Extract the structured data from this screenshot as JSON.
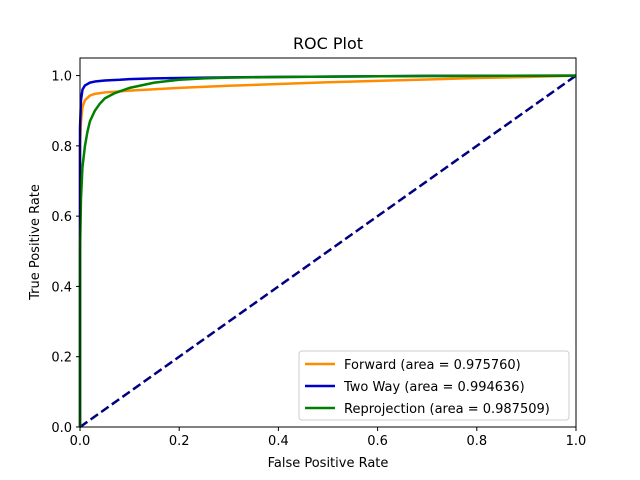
{
  "chart_data": {
    "type": "line",
    "title": "ROC Plot",
    "xlabel": "False Positive Rate",
    "ylabel": "True Positive Rate",
    "xlim": [
      0,
      1
    ],
    "ylim": [
      0,
      1.05
    ],
    "xticks": [
      0,
      0.2,
      0.4,
      0.6,
      0.8,
      1
    ],
    "yticks": [
      0,
      0.2,
      0.4,
      0.6,
      0.8,
      1
    ],
    "xtick_labels": [
      "0.0",
      "0.2",
      "0.4",
      "0.6",
      "0.8",
      "1.0"
    ],
    "ytick_labels": [
      "0.0",
      "0.2",
      "0.4",
      "0.6",
      "0.8",
      "1.0"
    ],
    "grid": false,
    "legend_position": "lower-right",
    "series": [
      {
        "name": "Forward (area = 0.975760)",
        "color": "#ff8c00",
        "style": "solid",
        "x": [
          0,
          0,
          0.002,
          0.005,
          0.01,
          0.02,
          0.03,
          0.05,
          0.08,
          0.1,
          0.2,
          0.3,
          0.4,
          0.5,
          0.6,
          0.7,
          0.8,
          0.9,
          1.0
        ],
        "y": [
          0,
          0.8,
          0.87,
          0.91,
          0.93,
          0.943,
          0.948,
          0.952,
          0.955,
          0.957,
          0.965,
          0.971,
          0.976,
          0.981,
          0.985,
          0.989,
          0.993,
          0.996,
          1.0
        ]
      },
      {
        "name": "Two Way (area = 0.994636)",
        "color": "#0000cc",
        "style": "solid",
        "x": [
          0,
          0,
          0.002,
          0.005,
          0.01,
          0.02,
          0.03,
          0.05,
          0.08,
          0.1,
          0.15,
          0.2,
          0.3,
          0.5,
          0.7,
          1.0
        ],
        "y": [
          0,
          0.85,
          0.93,
          0.96,
          0.972,
          0.98,
          0.983,
          0.986,
          0.988,
          0.99,
          0.992,
          0.993,
          0.995,
          0.997,
          0.999,
          1.0
        ]
      },
      {
        "name": "Reprojection (area = 0.987509)",
        "color": "#008000",
        "style": "solid",
        "x": [
          0,
          0,
          0.002,
          0.005,
          0.01,
          0.015,
          0.02,
          0.03,
          0.04,
          0.05,
          0.07,
          0.1,
          0.15,
          0.2,
          0.25,
          0.3,
          0.4,
          0.5,
          0.6,
          0.8,
          1.0
        ],
        "y": [
          0,
          0.5,
          0.65,
          0.74,
          0.8,
          0.84,
          0.87,
          0.9,
          0.92,
          0.935,
          0.95,
          0.965,
          0.98,
          0.988,
          0.992,
          0.994,
          0.996,
          0.997,
          0.998,
          0.999,
          1.0
        ]
      },
      {
        "name": "",
        "color": "#000080",
        "style": "dashed",
        "x": [
          0,
          1
        ],
        "y": [
          0,
          1
        ]
      }
    ]
  }
}
